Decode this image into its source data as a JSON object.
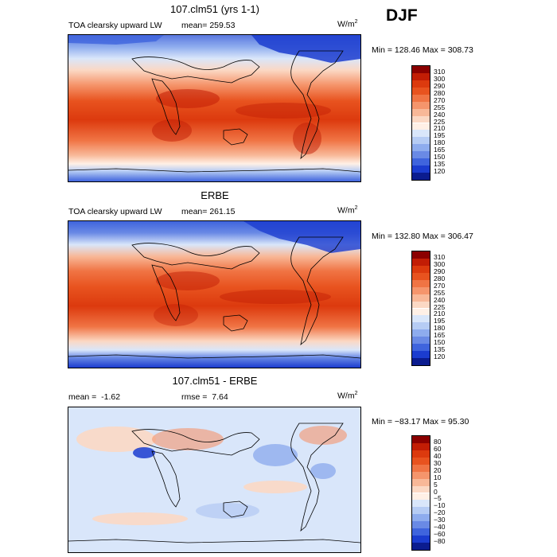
{
  "season": "DJF",
  "panels": [
    {
      "title": "107.clm51 (yrs 1-1)",
      "variable": "TOA clearsky upward LW",
      "mean_label": "mean=",
      "mean_value": "259.53",
      "units_base": "W/m",
      "units_exp": "2",
      "minmax": "Min = 128.46 Max = 308.73",
      "colorbar": {
        "labels": [
          "310",
          "300",
          "290",
          "280",
          "270",
          "255",
          "240",
          "225",
          "210",
          "195",
          "180",
          "165",
          "150",
          "135",
          "120"
        ],
        "colors": [
          "#8b0000",
          "#c21d05",
          "#dc3a0e",
          "#e8531f",
          "#f07444",
          "#f5956c",
          "#f8b898",
          "#fbd8c4",
          "#fff0e6",
          "#d9e6fa",
          "#b6ccf4",
          "#8eacee",
          "#6a8ae5",
          "#3f64dd",
          "#1b3ccf",
          "#0b1c8f"
        ]
      }
    },
    {
      "title": "ERBE",
      "variable": "TOA clearsky upward LW",
      "mean_label": "mean=",
      "mean_value": "261.15",
      "units_base": "W/m",
      "units_exp": "2",
      "minmax": "Min = 132.80 Max = 306.47",
      "colorbar": {
        "labels": [
          "310",
          "300",
          "290",
          "280",
          "270",
          "255",
          "240",
          "225",
          "210",
          "195",
          "180",
          "165",
          "150",
          "135",
          "120"
        ],
        "colors": [
          "#8b0000",
          "#c21d05",
          "#dc3a0e",
          "#e8531f",
          "#f07444",
          "#f5956c",
          "#f8b898",
          "#fbd8c4",
          "#fff0e6",
          "#d9e6fa",
          "#b6ccf4",
          "#8eacee",
          "#6a8ae5",
          "#3f64dd",
          "#1b3ccf",
          "#0b1c8f"
        ]
      }
    },
    {
      "title": "107.clm51 - ERBE",
      "mean_label": "mean =",
      "mean_value": "-1.62",
      "rmse_label": "rmse =",
      "rmse_value": "7.64",
      "units_base": "W/m",
      "units_exp": "2",
      "minmax": "Min = −83.17 Max =  95.30",
      "colorbar": {
        "labels": [
          "80",
          "60",
          "40",
          "30",
          "20",
          "10",
          "5",
          "0",
          "−5",
          "−10",
          "−20",
          "−30",
          "−40",
          "−60",
          "−80"
        ],
        "colors": [
          "#8b0000",
          "#c21d05",
          "#dc3a0e",
          "#e8531f",
          "#f07444",
          "#f5956c",
          "#f8b898",
          "#fbd8c4",
          "#fff0e6",
          "#d9e6fa",
          "#b6ccf4",
          "#8eacee",
          "#6a8ae5",
          "#3f64dd",
          "#1b3ccf",
          "#0b1c8f"
        ]
      }
    }
  ]
}
